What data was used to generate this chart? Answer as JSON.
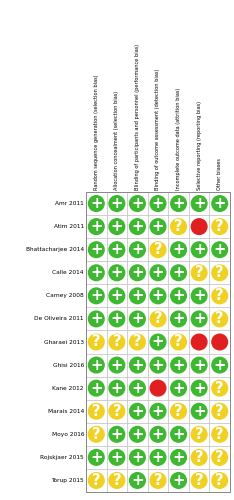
{
  "columns": [
    "Random sequence generation (selection bias)",
    "Allocation concealment (selection bias)",
    "Blinding of participants and personnel (performance bias)",
    "Binding of outcome assessment (detection bias)",
    "Incomplete outcome data (attrition bias)",
    "Selective reporting (reporting bias)",
    "Other biases"
  ],
  "rows": [
    "Amr 2011",
    "Atim 2011",
    "Bhattacharjee 2014",
    "Calle 2014",
    "Carney 2008",
    "De Oliveira 2011",
    "Gharaei 2013",
    "Ghisi 2016",
    "Kane 2012",
    "Marais 2014",
    "Moyo 2016",
    "Rojskjaer 2015",
    "Torup 2015"
  ],
  "grid": [
    [
      "G",
      "G",
      "G",
      "G",
      "G",
      "G",
      "G"
    ],
    [
      "G",
      "G",
      "G",
      "G",
      "Y",
      "R",
      "Y"
    ],
    [
      "G",
      "G",
      "G",
      "Y",
      "G",
      "G",
      "G"
    ],
    [
      "G",
      "G",
      "G",
      "G",
      "G",
      "Y",
      "Y"
    ],
    [
      "G",
      "G",
      "G",
      "G",
      "G",
      "G",
      "Y"
    ],
    [
      "G",
      "G",
      "G",
      "Y",
      "G",
      "G",
      "Y"
    ],
    [
      "Y",
      "Y",
      "Y",
      "G",
      "Y",
      "R",
      "R"
    ],
    [
      "G",
      "G",
      "G",
      "G",
      "G",
      "G",
      "G"
    ],
    [
      "G",
      "G",
      "G",
      "R",
      "G",
      "G",
      "Y"
    ],
    [
      "Y",
      "Y",
      "G",
      "G",
      "Y",
      "G",
      "Y"
    ],
    [
      "Y",
      "G",
      "G",
      "G",
      "G",
      "Y",
      "Y"
    ],
    [
      "G",
      "G",
      "G",
      "G",
      "G",
      "Y",
      "Y"
    ],
    [
      "Y",
      "Y",
      "G",
      "Y",
      "G",
      "Y",
      "Y"
    ]
  ],
  "colors": {
    "G": "#3db830",
    "Y": "#f0d020",
    "R": "#e02020"
  },
  "symbols": {
    "G": "+",
    "Y": "?",
    "R": ""
  },
  "bg_color": "#ffffff",
  "grid_line_color": "#bbbbbb",
  "text_color": "#000000"
}
